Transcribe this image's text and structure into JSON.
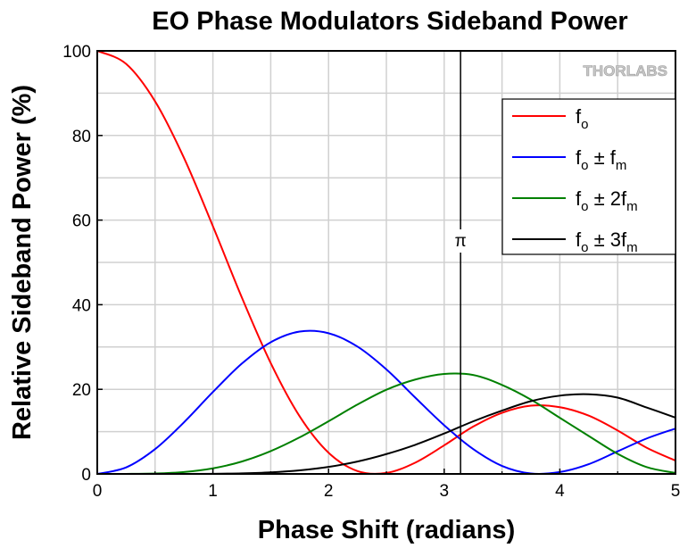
{
  "chart_data": {
    "type": "line",
    "title": "EO Phase Modulators Sideband Power",
    "xlabel": "Phase Shift (radians)",
    "ylabel": "Relative Sideband Power (%)",
    "xlim": [
      0,
      5
    ],
    "ylim": [
      0,
      100
    ],
    "xticks": [
      "0",
      "1",
      "2",
      "3",
      "4",
      "5"
    ],
    "yticks": [
      "0",
      "20",
      "40",
      "60",
      "80",
      "100"
    ],
    "grid": true,
    "legend_position": "top-right",
    "x": [
      0,
      0.25,
      0.5,
      0.75,
      1,
      1.25,
      1.5,
      1.75,
      2,
      2.25,
      2.5,
      2.75,
      3,
      3.25,
      3.5,
      3.75,
      4,
      4.25,
      4.5,
      4.75,
      5
    ],
    "series": [
      {
        "name": "fo",
        "base": "f",
        "sub": "o",
        "rest": "",
        "rest_sub": "",
        "color": "#ff0000",
        "values": [
          100,
          96.91,
          88.07,
          74.69,
          58.55,
          41.72,
          26.2,
          13.62,
          5.01,
          0.68,
          0.23,
          2.67,
          6.76,
          11.17,
          14.45,
          16.14,
          15.77,
          13.77,
          10.27,
          6.2,
          3.15
        ]
      },
      {
        "name": "fo ± fm",
        "base": "f",
        "sub": "o",
        "rest": " ± f",
        "rest_sub": "m",
        "color": "#0000ff",
        "values": [
          0,
          1.54,
          5.87,
          12.2,
          19.36,
          26.07,
          31.13,
          33.65,
          33.26,
          30.1,
          24.71,
          18.04,
          11.5,
          5.9,
          1.89,
          0.1,
          0.44,
          2.31,
          5.34,
          8.36,
          10.73
        ]
      },
      {
        "name": "fo ± 2fm",
        "base": "f",
        "sub": "o",
        "rest": " ± 2f",
        "rest_sub": "m",
        "color": "#008000",
        "values": [
          0,
          0.006,
          0.094,
          0.45,
          1.32,
          2.93,
          5.39,
          8.64,
          12.45,
          16.4,
          19.9,
          22.31,
          23.63,
          23.4,
          21.03,
          17.56,
          13.26,
          8.97,
          4.75,
          1.62,
          0.22
        ]
      },
      {
        "name": "fo ± 3fm",
        "base": "f",
        "sub": "o",
        "rest": " ± 3f",
        "rest_sub": "m",
        "color": "#000000",
        "values": [
          0,
          0,
          0.0007,
          0.007,
          0.038,
          0.136,
          0.372,
          0.841,
          1.66,
          2.93,
          4.69,
          6.88,
          9.55,
          12.42,
          14.96,
          17.19,
          18.5,
          18.83,
          18.04,
          15.71,
          13.31
        ]
      }
    ],
    "annotations": [
      {
        "label": "π",
        "x": 3.1416
      }
    ],
    "logo": "THORLABS"
  }
}
